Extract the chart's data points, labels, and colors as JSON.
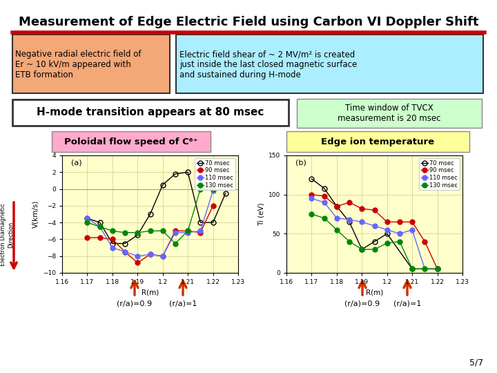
{
  "title": "Measurement of Edge Electric Field using Carbon VI Doppler Shift",
  "title_fontsize": 13,
  "title_color": "#000000",
  "title_line_color": "#cc0000",
  "box1_text": "Negative radial electric field of\nEr ~ 10 kV/m appeared with\nETB formation",
  "box1_bg": "#f4a878",
  "box2_text": "Electric field shear of ~ 2 MV/m² is created\njust inside the last closed magnetic surface\nand sustained during H-mode",
  "box2_bg": "#aaeeff",
  "hmode_text": "H-mode transition appears at 80 msec",
  "hmode_bg": "#ffffff",
  "tvcx_text": "Time window of TVCX\nmeasurement is 20 msec",
  "tvcx_bg": "#ccffcc",
  "poloidal_label": "Poloidal flow speed of C⁶⁺",
  "poloidal_bg": "#ffaacc",
  "edge_label": "Edge ion temperature",
  "edge_bg": "#ffff99",
  "arrow_label1": "(r/a)=0.9",
  "arrow_label2": "(r/a)=1",
  "page_label": "5/7",
  "plot_bg": "#ffffcc",
  "left_plot": {
    "label": "(a)",
    "xlabel": "R(m)",
    "ylabel": "V(km/s)",
    "xlim": [
      1.16,
      1.23
    ],
    "ylim": [
      -10,
      4
    ],
    "yticks": [
      -10,
      -8,
      -6,
      -4,
      -2,
      0,
      2,
      4
    ],
    "xticks": [
      1.16,
      1.17,
      1.18,
      1.19,
      1.2,
      1.21,
      1.22,
      1.23
    ],
    "series": [
      {
        "label": "70 msec",
        "color": "#000000",
        "marker": "o",
        "fillstyle": "none",
        "x": [
          1.17,
          1.175,
          1.18,
          1.185,
          1.19,
          1.195,
          1.2,
          1.205,
          1.21,
          1.215,
          1.22,
          1.225
        ],
        "y": [
          -3.5,
          -4.0,
          -6.5,
          -6.5,
          -5.5,
          -3.0,
          0.5,
          1.8,
          2.0,
          -4.0,
          -4.0,
          -0.5
        ]
      },
      {
        "label": "90 msec",
        "color": "#cc0000",
        "marker": "o",
        "fillstyle": "full",
        "x": [
          1.17,
          1.175,
          1.18,
          1.185,
          1.19,
          1.195,
          1.2,
          1.205,
          1.21,
          1.215,
          1.22
        ],
        "y": [
          -5.8,
          -5.8,
          -6.0,
          -7.5,
          -8.8,
          -7.8,
          -8.0,
          -5.0,
          -5.0,
          -5.2,
          -2.0
        ]
      },
      {
        "label": "110 msec",
        "color": "#6666ff",
        "marker": "o",
        "fillstyle": "full",
        "x": [
          1.17,
          1.175,
          1.18,
          1.185,
          1.19,
          1.195,
          1.2,
          1.205,
          1.21,
          1.215,
          1.22
        ],
        "y": [
          -3.5,
          -4.5,
          -7.0,
          -7.5,
          -8.0,
          -7.8,
          -8.0,
          -5.2,
          -5.2,
          -5.0,
          -0.2
        ]
      },
      {
        "label": "130 msec",
        "color": "#008800",
        "marker": "o",
        "fillstyle": "full",
        "x": [
          1.17,
          1.175,
          1.18,
          1.185,
          1.19,
          1.195,
          1.2,
          1.205,
          1.21,
          1.215,
          1.22
        ],
        "y": [
          -4.0,
          -4.5,
          -5.0,
          -5.2,
          -5.2,
          -5.0,
          -5.0,
          -6.5,
          -5.0,
          0.0,
          0.0
        ]
      }
    ]
  },
  "right_plot": {
    "label": "(b)",
    "xlabel": "R(m)",
    "ylabel": "Ti (eV)",
    "xlim": [
      1.16,
      1.23
    ],
    "ylim": [
      0,
      150
    ],
    "yticks": [
      0,
      50,
      100,
      150
    ],
    "xticks": [
      1.16,
      1.17,
      1.18,
      1.19,
      1.2,
      1.21,
      1.22,
      1.23
    ],
    "series": [
      {
        "label": "70 msec",
        "color": "#000000",
        "marker": "o",
        "fillstyle": "none",
        "x": [
          1.17,
          1.175,
          1.18,
          1.185,
          1.19,
          1.195,
          1.2,
          1.21,
          1.22
        ],
        "y": [
          120,
          108,
          85,
          65,
          30,
          40,
          50,
          5,
          5
        ]
      },
      {
        "label": "90 msec",
        "color": "#cc0000",
        "marker": "o",
        "fillstyle": "full",
        "x": [
          1.17,
          1.175,
          1.18,
          1.185,
          1.19,
          1.195,
          1.2,
          1.205,
          1.21,
          1.215,
          1.22
        ],
        "y": [
          100,
          98,
          85,
          90,
          82,
          80,
          65,
          65,
          65,
          40,
          5
        ]
      },
      {
        "label": "110 msec",
        "color": "#6666ff",
        "marker": "o",
        "fillstyle": "full",
        "x": [
          1.17,
          1.175,
          1.18,
          1.185,
          1.19,
          1.195,
          1.2,
          1.205,
          1.21,
          1.215,
          1.22
        ],
        "y": [
          95,
          90,
          70,
          68,
          65,
          60,
          55,
          50,
          55,
          5,
          5
        ]
      },
      {
        "label": "130 msec",
        "color": "#008800",
        "marker": "o",
        "fillstyle": "full",
        "x": [
          1.17,
          1.175,
          1.18,
          1.185,
          1.19,
          1.195,
          1.2,
          1.205,
          1.21,
          1.215,
          1.22
        ],
        "y": [
          75,
          70,
          55,
          40,
          30,
          30,
          38,
          40,
          5,
          5,
          5
        ]
      }
    ]
  }
}
